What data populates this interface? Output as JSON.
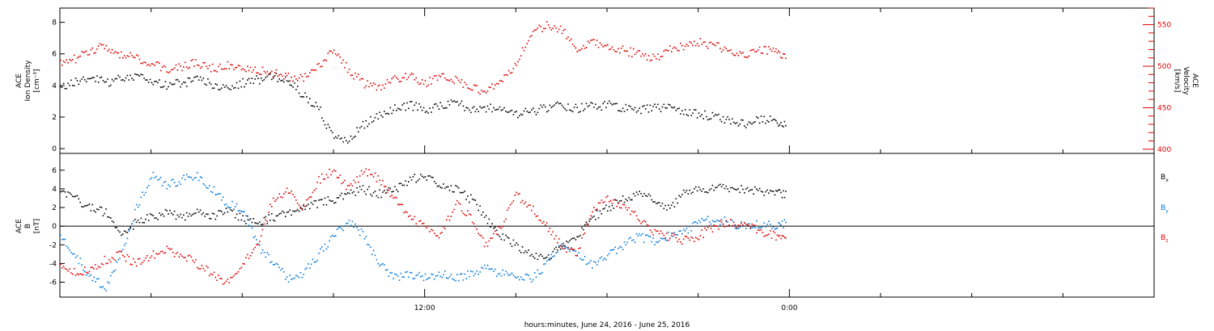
{
  "chart_data": [
    {
      "type": "scatter",
      "panel": "top",
      "ylabel_left": [
        "ACE",
        "Ion Density",
        "[cm⁻³]"
      ],
      "ylabel_right": [
        "ACE",
        "Velocity",
        "[km/s]"
      ],
      "left_axis": {
        "ylim": [
          -0.3,
          8.9
        ],
        "ticks": [
          0,
          2,
          4,
          6,
          8
        ]
      },
      "right_axis": {
        "ylim": [
          395,
          570
        ],
        "ticks": [
          400,
          450,
          500,
          550
        ],
        "color": "#dd0000"
      },
      "series": [
        {
          "name": "",
          "color": "#000000",
          "axis": "left",
          "x": [
            0.0,
            0.5,
            1.0,
            1.5,
            2.0,
            2.5,
            3.0,
            3.5,
            4.0,
            4.5,
            5.0,
            5.5,
            6.0,
            6.5,
            7.0,
            7.5,
            8.0,
            8.5,
            9.0,
            9.5,
            10.0,
            10.5,
            11.0,
            11.5,
            12.0,
            12.5,
            13.0,
            13.5,
            14.0,
            14.5,
            15.0,
            15.5,
            16.0,
            16.5,
            17.0,
            17.5,
            18.0,
            18.5,
            19.0,
            19.5,
            20.0,
            20.5,
            21.0,
            21.5,
            22.0,
            22.5,
            23.0,
            23.5,
            23.9
          ],
          "y": [
            4.0,
            4.3,
            4.6,
            4.2,
            4.5,
            4.6,
            4.3,
            4.0,
            4.2,
            4.4,
            4.1,
            3.8,
            4.2,
            4.4,
            4.6,
            4.3,
            3.4,
            2.6,
            0.6,
            0.6,
            1.6,
            2.2,
            2.6,
            2.8,
            2.5,
            2.8,
            3.0,
            2.5,
            2.6,
            2.7,
            2.2,
            2.4,
            2.6,
            2.8,
            2.6,
            2.7,
            2.8,
            2.6,
            2.4,
            2.7,
            2.6,
            2.4,
            2.2,
            2.1,
            1.8,
            1.6,
            1.9,
            1.8,
            1.5
          ]
        },
        {
          "name": "",
          "color": "#dd0000",
          "axis": "right",
          "x": [
            0.0,
            0.5,
            1.0,
            1.5,
            2.0,
            2.5,
            3.0,
            3.5,
            4.0,
            4.5,
            5.0,
            5.5,
            6.0,
            6.5,
            7.0,
            7.5,
            8.0,
            8.5,
            9.0,
            9.5,
            10.0,
            10.5,
            11.0,
            11.5,
            12.0,
            12.5,
            13.0,
            13.5,
            14.0,
            14.5,
            15.0,
            15.5,
            16.0,
            16.5,
            17.0,
            17.5,
            18.0,
            18.5,
            19.0,
            19.5,
            20.0,
            20.5,
            21.0,
            21.5,
            22.0,
            22.5,
            23.0,
            23.5,
            23.9
          ],
          "y": [
            505,
            510,
            520,
            525,
            515,
            510,
            505,
            495,
            500,
            505,
            498,
            502,
            500,
            496,
            492,
            488,
            485,
            500,
            520,
            495,
            480,
            475,
            485,
            490,
            480,
            488,
            484,
            476,
            470,
            480,
            505,
            540,
            550,
            545,
            520,
            530,
            525,
            520,
            515,
            510,
            520,
            525,
            530,
            525,
            520,
            515,
            522,
            518,
            510
          ]
        }
      ]
    },
    {
      "type": "scatter",
      "panel": "bottom",
      "ylabel_left": [
        "ACE",
        "B",
        "[nT]"
      ],
      "ylim": [
        -7.6,
        7.8
      ],
      "ticks": [
        -6,
        -4,
        -2,
        0,
        2,
        4,
        6
      ],
      "zero_line": true,
      "legend": "right",
      "xlabel": "hours:minutes, June 24, 2016 - June 25, 2016",
      "xlim": [
        0,
        36
      ],
      "xtick_labels": [
        {
          "x": 12,
          "label": "12:00"
        },
        {
          "x": 24,
          "label": "0:00"
        }
      ],
      "series": [
        {
          "name": "Bx",
          "label_main": "B",
          "label_sub": "x",
          "color": "#000000",
          "x": [
            0.0,
            0.5,
            1.0,
            1.5,
            2.0,
            2.5,
            3.0,
            3.5,
            4.0,
            4.5,
            5.0,
            5.5,
            6.0,
            6.5,
            7.0,
            7.5,
            8.0,
            8.5,
            9.0,
            9.5,
            10.0,
            10.5,
            11.0,
            11.5,
            12.0,
            12.5,
            13.0,
            13.5,
            14.0,
            14.5,
            15.0,
            15.5,
            16.0,
            16.5,
            17.0,
            17.5,
            18.0,
            18.5,
            19.0,
            19.5,
            20.0,
            20.5,
            21.0,
            21.5,
            22.0,
            22.5,
            23.0,
            23.5,
            23.9
          ],
          "y": [
            4.0,
            3.0,
            2.0,
            1.5,
            -1.0,
            0.5,
            1.0,
            1.5,
            1.0,
            1.5,
            1.0,
            2.0,
            0.8,
            0.5,
            1.0,
            1.5,
            2.0,
            2.5,
            3.0,
            3.5,
            4.0,
            3.5,
            4.0,
            5.0,
            5.5,
            4.5,
            4.0,
            3.0,
            1.0,
            -1.0,
            -2.0,
            -3.0,
            -3.5,
            -2.0,
            -1.0,
            1.0,
            2.0,
            3.0,
            3.5,
            3.0,
            2.0,
            3.5,
            4.0,
            4.2,
            4.2,
            4.0,
            3.8,
            3.6,
            3.5
          ]
        },
        {
          "name": "By",
          "label_main": "B",
          "label_sub": "y",
          "color": "#0077dd",
          "x": [
            0.0,
            0.5,
            1.0,
            1.5,
            2.0,
            2.5,
            3.0,
            3.5,
            4.0,
            4.5,
            5.0,
            5.5,
            6.0,
            6.5,
            7.0,
            7.5,
            8.0,
            8.5,
            9.0,
            9.5,
            10.0,
            10.5,
            11.0,
            11.5,
            12.0,
            12.5,
            13.0,
            13.5,
            14.0,
            14.5,
            15.0,
            15.5,
            16.0,
            16.5,
            17.0,
            17.5,
            18.0,
            18.5,
            19.0,
            19.5,
            20.0,
            20.5,
            21.0,
            21.5,
            22.0,
            22.5,
            23.0,
            23.5,
            23.9
          ],
          "y": [
            -1.0,
            -3.0,
            -5.5,
            -6.5,
            -3.0,
            2.0,
            5.5,
            4.5,
            5.0,
            5.5,
            4.0,
            2.5,
            2.0,
            -2.0,
            -4.0,
            -5.5,
            -5.0,
            -3.0,
            -1.0,
            0.5,
            -1.0,
            -4.0,
            -5.5,
            -5.0,
            -5.5,
            -5.0,
            -5.5,
            -5.0,
            -4.5,
            -5.0,
            -5.5,
            -5.5,
            -4.0,
            -2.0,
            -3.0,
            -4.0,
            -3.0,
            -2.0,
            -1.0,
            -1.5,
            -1.0,
            -0.5,
            0.5,
            0.8,
            0.5,
            0.0,
            0.3,
            0.0,
            0.5
          ]
        },
        {
          "name": "Bz",
          "label_main": "B",
          "label_sub": "z",
          "color": "#dd0000",
          "x": [
            0.0,
            0.5,
            1.0,
            1.5,
            2.0,
            2.5,
            3.0,
            3.5,
            4.0,
            4.5,
            5.0,
            5.5,
            6.0,
            6.5,
            7.0,
            7.5,
            8.0,
            8.5,
            9.0,
            9.5,
            10.0,
            10.5,
            11.0,
            11.5,
            12.0,
            12.5,
            13.0,
            13.5,
            14.0,
            14.5,
            15.0,
            15.5,
            16.0,
            16.5,
            17.0,
            17.5,
            18.0,
            18.5,
            19.0,
            19.5,
            20.0,
            20.5,
            21.0,
            21.5,
            22.0,
            22.5,
            23.0,
            23.5,
            23.9
          ],
          "y": [
            -4.0,
            -5.0,
            -4.5,
            -3.5,
            -3.0,
            -4.0,
            -3.0,
            -2.5,
            -3.0,
            -4.0,
            -5.0,
            -6.0,
            -4.0,
            -2.0,
            3.0,
            4.0,
            2.0,
            5.0,
            6.0,
            4.0,
            6.0,
            5.0,
            3.0,
            1.0,
            0.0,
            -1.0,
            2.5,
            1.0,
            -2.0,
            0.0,
            3.5,
            2.0,
            0.0,
            -2.0,
            -3.0,
            2.0,
            3.0,
            2.0,
            1.0,
            -0.5,
            -1.0,
            -1.5,
            -1.0,
            0.0,
            0.5,
            0.2,
            -0.5,
            -1.0,
            -1.5
          ]
        }
      ]
    }
  ]
}
